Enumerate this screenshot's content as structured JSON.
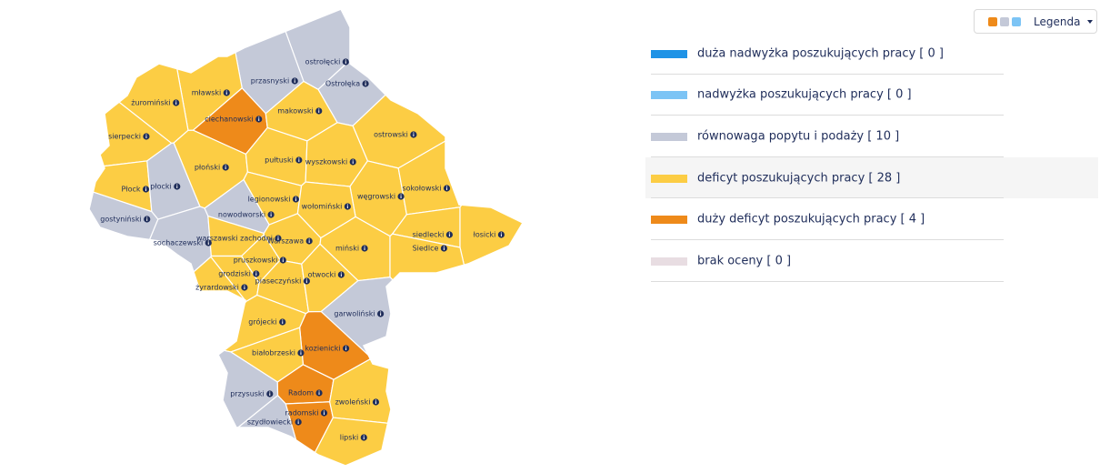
{
  "legend_button": {
    "label": "Legenda"
  },
  "legend": {
    "items": [
      {
        "label": "duża nadwyżka poszukujących pracy [ 0 ]",
        "color": "#1f93e6"
      },
      {
        "label": "nadwyżka poszukujących pracy [ 0 ]",
        "color": "#7cc4f5"
      },
      {
        "label": "równowaga popytu i podaży [ 10 ]",
        "color": "#c4c9d8"
      },
      {
        "label": "deficyt poszukujących pracy [ 28 ]",
        "color": "#fccd44"
      },
      {
        "label": "duży deficyt poszukujących pracy [ 4 ]",
        "color": "#ee8a1a"
      },
      {
        "label": "brak oceny [ 0 ]",
        "color": "#e8dde2"
      }
    ]
  },
  "map": {
    "regions": [
      {
        "name": "ostrołęcki",
        "color": "#c4c9d8"
      },
      {
        "name": "przasnyski",
        "color": "#c4c9d8"
      },
      {
        "name": "Ostrołęka",
        "color": "#c4c9d8"
      },
      {
        "name": "mławski",
        "color": "#fccd44"
      },
      {
        "name": "żuromiński",
        "color": "#fccd44"
      },
      {
        "name": "ciechanowski",
        "color": "#ee8a1a"
      },
      {
        "name": "makowski",
        "color": "#fccd44"
      },
      {
        "name": "ostrowski",
        "color": "#fccd44"
      },
      {
        "name": "sierpecki",
        "color": "#fccd44"
      },
      {
        "name": "płoński",
        "color": "#fccd44"
      },
      {
        "name": "pułtuski",
        "color": "#fccd44"
      },
      {
        "name": "wyszkowski",
        "color": "#fccd44"
      },
      {
        "name": "Płock",
        "color": "#fccd44"
      },
      {
        "name": "płocki",
        "color": "#c4c9d8"
      },
      {
        "name": "legionowski",
        "color": "#fccd44"
      },
      {
        "name": "węgrowski",
        "color": "#fccd44"
      },
      {
        "name": "sokołowski",
        "color": "#fccd44"
      },
      {
        "name": "wołomiński",
        "color": "#fccd44"
      },
      {
        "name": "nowodworski",
        "color": "#c4c9d8"
      },
      {
        "name": "gostyniński",
        "color": "#c4c9d8"
      },
      {
        "name": "siedlecki",
        "color": "#fccd44"
      },
      {
        "name": "łosicki",
        "color": "#fccd44"
      },
      {
        "name": "sochaczewski",
        "color": "#c4c9d8"
      },
      {
        "name": "warszawski zachodni",
        "color": "#fccd44"
      },
      {
        "name": "Warszawa",
        "color": "#fccd44"
      },
      {
        "name": "miński",
        "color": "#fccd44"
      },
      {
        "name": "Siedlce",
        "color": "#fccd44"
      },
      {
        "name": "pruszkowski",
        "color": "#fccd44"
      },
      {
        "name": "grodziski",
        "color": "#fccd44"
      },
      {
        "name": "piaseczyński",
        "color": "#fccd44"
      },
      {
        "name": "otwocki",
        "color": "#fccd44"
      },
      {
        "name": "żyrardowski",
        "color": "#fccd44"
      },
      {
        "name": "garwoliński",
        "color": "#c4c9d8"
      },
      {
        "name": "grójecki",
        "color": "#fccd44"
      },
      {
        "name": "kozienicki",
        "color": "#ee8a1a"
      },
      {
        "name": "białobrzeski",
        "color": "#fccd44"
      },
      {
        "name": "przysuski",
        "color": "#c4c9d8"
      },
      {
        "name": "Radom",
        "color": "#ee8a1a"
      },
      {
        "name": "radomski",
        "color": "#ee8a1a"
      },
      {
        "name": "zwoleński",
        "color": "#fccd44"
      },
      {
        "name": "szydłowiecki",
        "color": "#c4c9d8"
      },
      {
        "name": "lipski",
        "color": "#fccd44"
      }
    ]
  }
}
